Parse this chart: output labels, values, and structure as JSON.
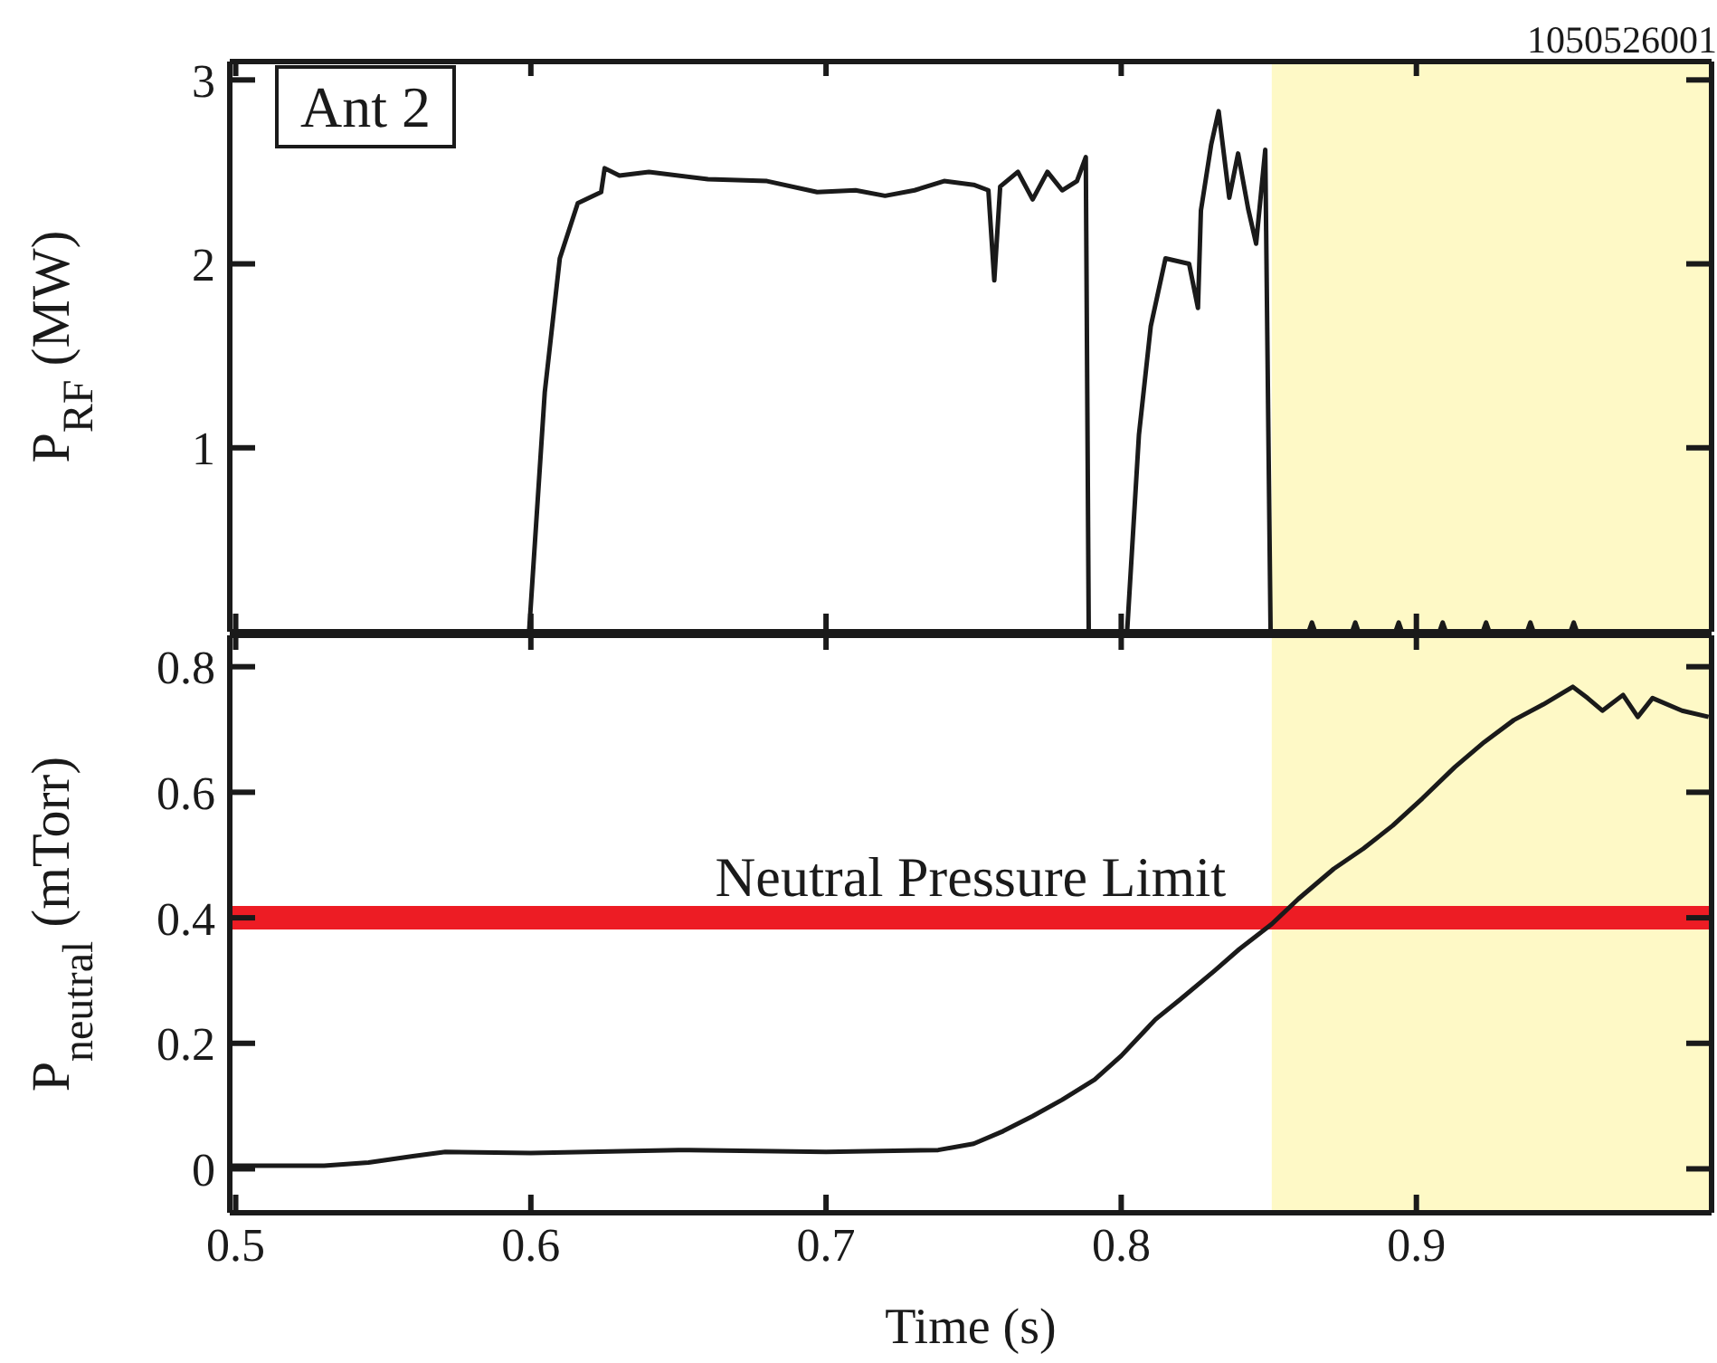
{
  "chart_data": [
    {
      "type": "line",
      "ylabel": "P$_{RF}$ (MW)",
      "annotations": [
        "1050526001",
        "Ant 2"
      ],
      "color": "#1a1a1a",
      "x": [
        0.498,
        0.5994,
        0.6047,
        0.6098,
        0.6159,
        0.6238,
        0.625,
        0.63,
        0.64,
        0.66,
        0.68,
        0.697,
        0.71,
        0.72,
        0.73,
        0.74,
        0.75,
        0.755,
        0.757,
        0.759,
        0.765,
        0.77,
        0.775,
        0.78,
        0.785,
        0.788,
        0.789,
        0.802,
        0.806,
        0.81,
        0.815,
        0.823,
        0.826,
        0.827,
        0.8305,
        0.833,
        0.8366,
        0.8396,
        0.843,
        0.8457,
        0.8488,
        0.8506,
        0.8635,
        0.8646,
        0.8657,
        0.8782,
        0.8793,
        0.8804,
        0.8929,
        0.894,
        0.8951,
        0.9078,
        0.9089,
        0.91,
        0.9225,
        0.9236,
        0.9247,
        0.9375,
        0.9386,
        0.9397,
        0.9522,
        0.9533,
        0.9544,
        1.0
      ],
      "values": [
        0,
        0,
        1.3,
        2.03,
        2.33,
        2.39,
        2.52,
        2.48,
        2.5,
        2.46,
        2.45,
        2.39,
        2.4,
        2.37,
        2.4,
        2.45,
        2.43,
        2.4,
        1.91,
        2.42,
        2.5,
        2.35,
        2.5,
        2.4,
        2.45,
        2.58,
        0,
        0,
        1.07,
        1.66,
        2.03,
        2.0,
        1.76,
        2.29,
        2.65,
        2.83,
        2.36,
        2.6,
        2.3,
        2.11,
        2.62,
        0,
        0,
        0.05,
        0,
        0,
        0.05,
        0,
        0,
        0.05,
        0,
        0,
        0.05,
        0,
        0,
        0.05,
        0,
        0,
        0.05,
        0,
        0,
        0.05,
        0,
        0
      ],
      "xlim": [
        0.498,
        1.0
      ],
      "ylim": [
        0,
        3.1
      ],
      "xticks": [
        0.5,
        0.6,
        0.7,
        0.8,
        0.9
      ],
      "yticks": [
        1,
        2,
        3
      ],
      "tick_labels": "y",
      "bands": [
        {
          "axis": "x",
          "from": 0.851,
          "to": 1.0,
          "color": "#fef9c6"
        }
      ]
    },
    {
      "type": "line",
      "xlabel": "Time (s)",
      "ylabel": "P$_{neutral}$ (mTorr)",
      "color": "#1a1a1a",
      "x": [
        0.498,
        0.53,
        0.545,
        0.56,
        0.571,
        0.6,
        0.65,
        0.7,
        0.738,
        0.75,
        0.76,
        0.77,
        0.78,
        0.791,
        0.8,
        0.8116,
        0.82,
        0.8317,
        0.84,
        0.851,
        0.86,
        0.872,
        0.882,
        0.892,
        0.902,
        0.913,
        0.923,
        0.933,
        0.943,
        0.953,
        0.958,
        0.963,
        0.97,
        0.975,
        0.98,
        0.99,
        0.999
      ],
      "values": [
        0.005,
        0.005,
        0.01,
        0.02,
        0.027,
        0.025,
        0.03,
        0.027,
        0.03,
        0.04,
        0.06,
        0.084,
        0.11,
        0.142,
        0.18,
        0.238,
        0.27,
        0.316,
        0.35,
        0.39,
        0.43,
        0.478,
        0.51,
        0.547,
        0.59,
        0.64,
        0.68,
        0.715,
        0.74,
        0.768,
        0.75,
        0.73,
        0.755,
        0.72,
        0.75,
        0.73,
        0.72
      ],
      "xlim": [
        0.498,
        1.0
      ],
      "ylim": [
        -0.07,
        0.85
      ],
      "xticks": [
        0.5,
        0.6,
        0.7,
        0.8,
        0.9
      ],
      "yticks": [
        0,
        0.2,
        0.4,
        0.6,
        0.8
      ],
      "ref_lines": [
        {
          "axis": "y",
          "value": 0.4,
          "label": "Neutral Pressure Limit",
          "color": "#ed1c24"
        }
      ],
      "bands": [
        {
          "axis": "x",
          "from": 0.851,
          "to": 1.0,
          "color": "#fef9c6"
        }
      ]
    }
  ]
}
